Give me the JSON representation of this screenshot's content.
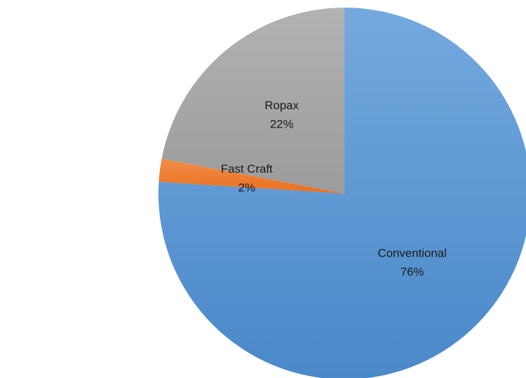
{
  "chart_data": {
    "type": "pie",
    "title": "",
    "start_angle_deg": 0,
    "direction": "clockwise",
    "legend": "none",
    "slices": [
      {
        "name": "Conventional",
        "value": 76,
        "percent_label": "76%",
        "color": "#5B9BD5"
      },
      {
        "name": "Fast Craft",
        "value": 2,
        "percent_label": "2%",
        "color": "#ED7D31"
      },
      {
        "name": "Ropax",
        "value": 22,
        "percent_label": "22%",
        "color": "#A5A5A5"
      }
    ]
  }
}
